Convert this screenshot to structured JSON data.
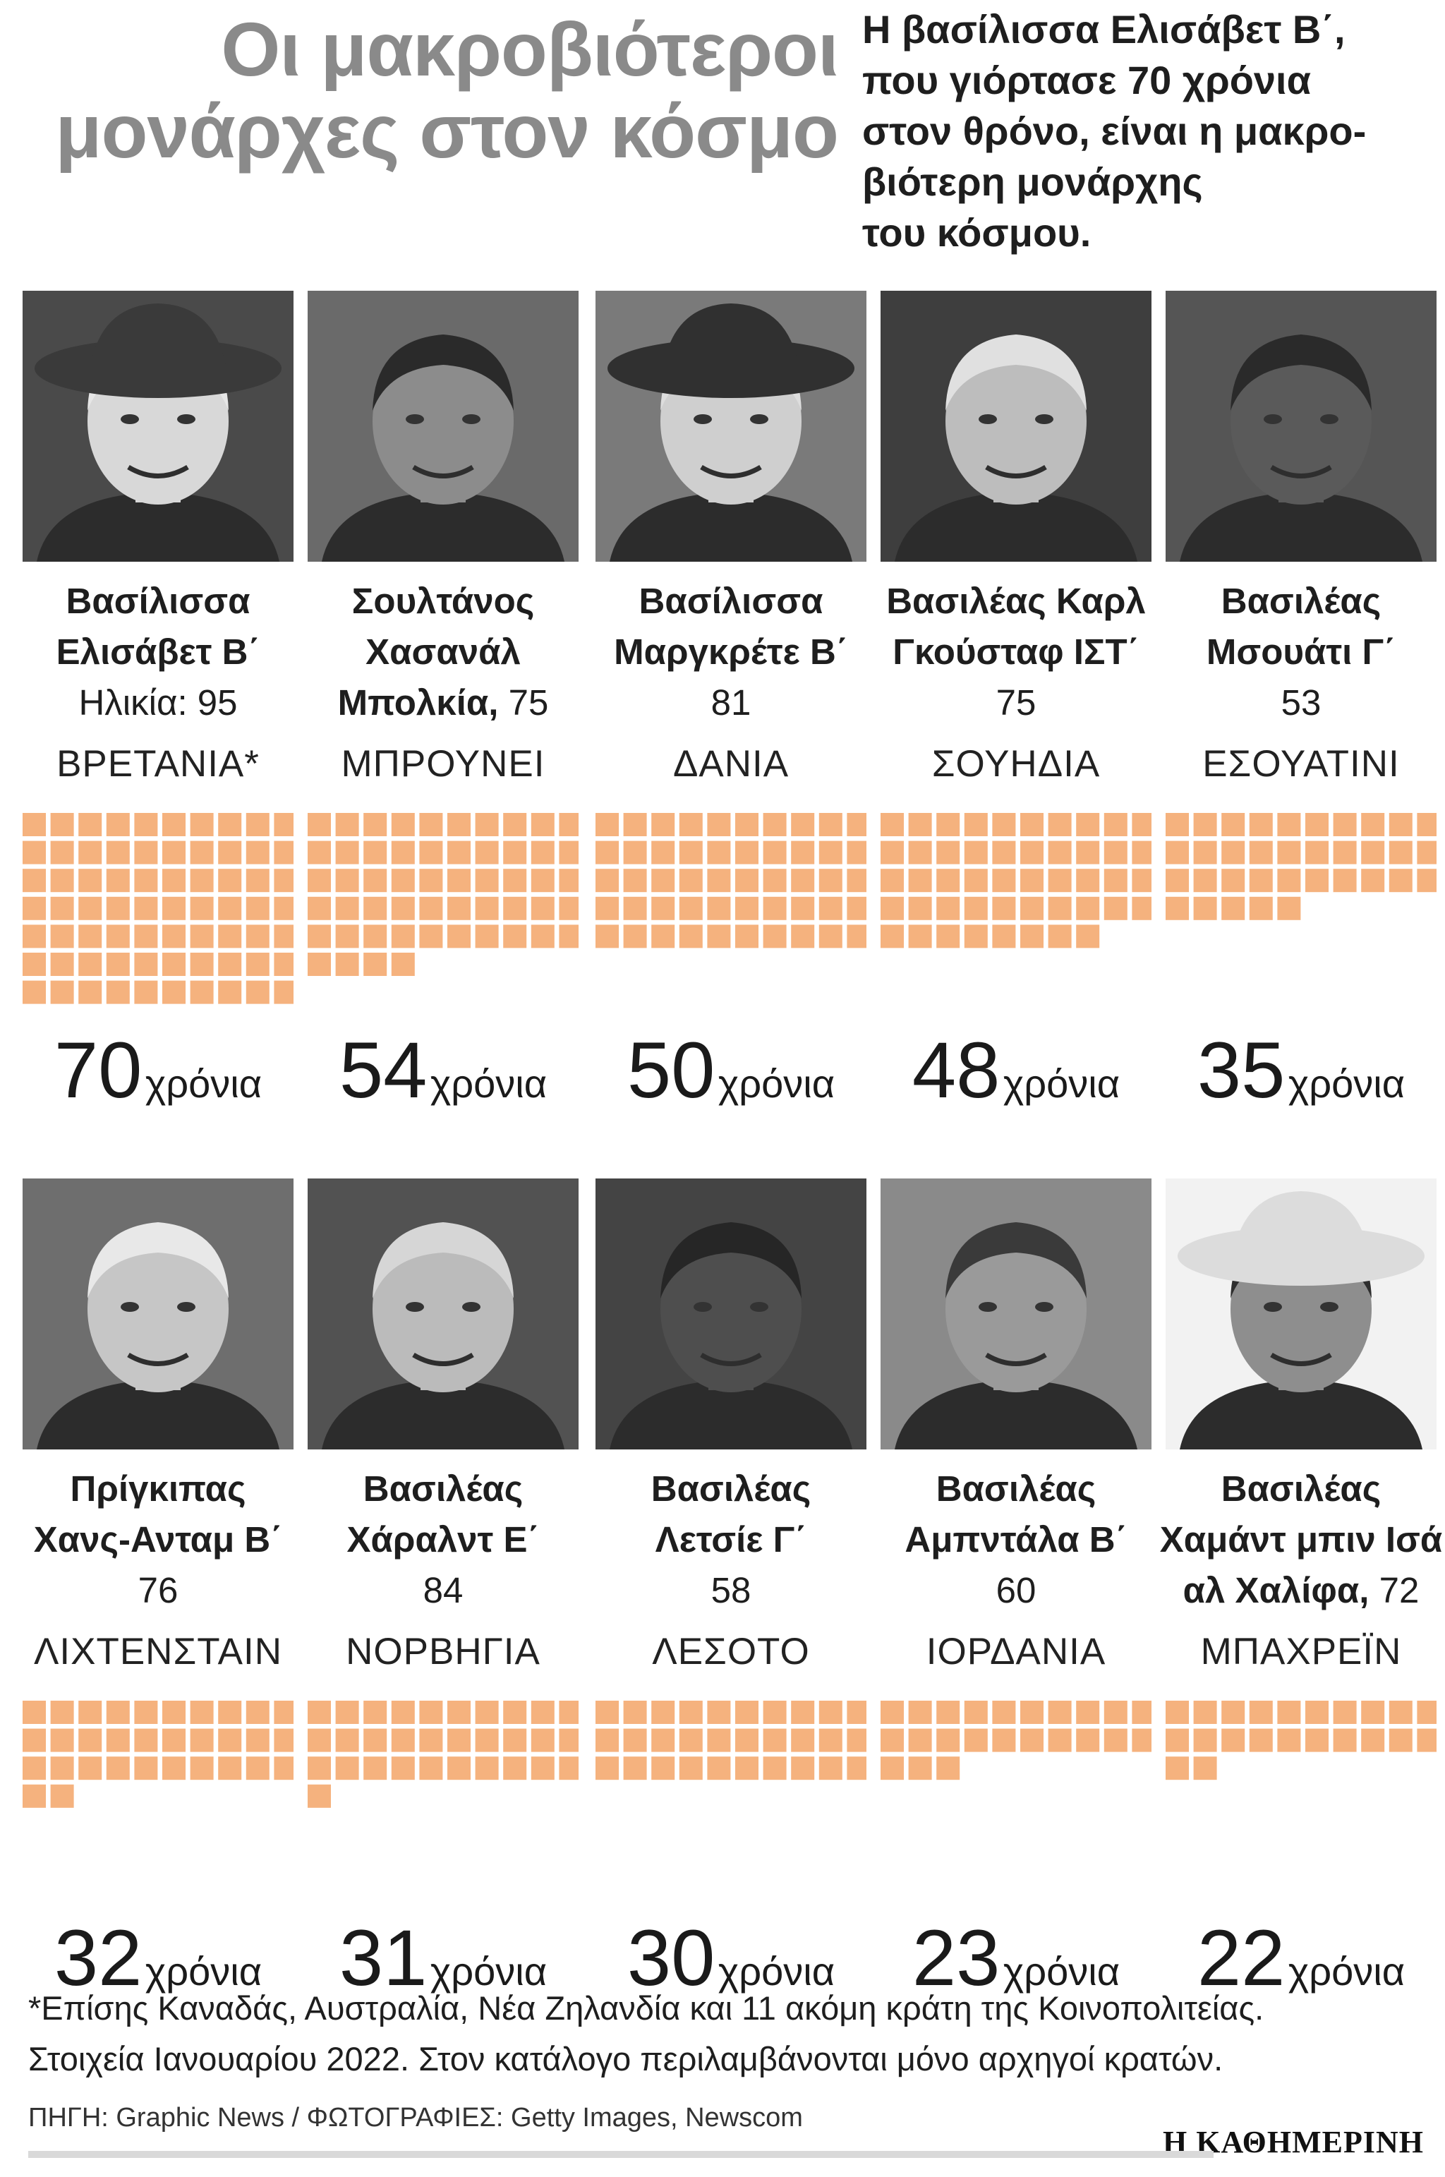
{
  "header": {
    "title_line1": "Οι μακροβιότεροι",
    "title_line2": "μονάρχες στον κόσμο",
    "subtitle_lines": [
      "Η βασίλισσα Ελισάβετ Β΄,",
      "που γιόρτασε 70 χρόνια",
      "στον θρόνο, είναι η μακρο-",
      "βιότερη μονάρχης",
      "του κόσμου."
    ]
  },
  "unit_label": "χρόνια",
  "chart_data": {
    "type": "waffle",
    "unit": "χρόνια",
    "cells_per_row": 10,
    "color": "#f5b27e",
    "items": [
      {
        "title": "Βασίλισσα",
        "name_line": "Ελισάβετ Β΄",
        "age_prefix": "Ηλικία: ",
        "age": "95",
        "country": "ΒΡΕΤΑΝΙΑ*",
        "years": 70
      },
      {
        "title": "Σουλτάνος",
        "name_line": "Χασανάλ",
        "name_inline": "Μπολκία,",
        "age": "75",
        "country": "ΜΠΡΟΥΝΕΙ",
        "years": 54
      },
      {
        "title": "Βασίλισσα",
        "name_line": "Μαργκρέτε Β΄",
        "age": "81",
        "country": "ΔΑΝΙΑ",
        "years": 50
      },
      {
        "title": "Βασιλέας Καρλ",
        "name_line": "Γκούσταφ ΙΣΤ΄",
        "age": "75",
        "country": "ΣΟΥΗΔΙΑ",
        "years": 48
      },
      {
        "title": "Βασιλέας",
        "name_line": "Μσουάτι Γ΄",
        "age": "53",
        "country": "ΕΣΟΥΑΤΙΝΙ",
        "years": 35
      },
      {
        "title": "Πρίγκιπας",
        "name_line": "Χανς-Ανταμ Β΄",
        "age": "76",
        "country": "ΛΙΧΤΕΝΣΤΑΙΝ",
        "years": 32
      },
      {
        "title": "Βασιλέας",
        "name_line": "Χάραλντ Ε΄",
        "age": "84",
        "country": "ΝΟΡΒΗΓΙΑ",
        "years": 31
      },
      {
        "title": "Βασιλέας",
        "name_line": "Λετσίε Γ΄",
        "age": "58",
        "country": "ΛΕΣΟΤΟ",
        "years": 30
      },
      {
        "title": "Βασιλέας",
        "name_line": "Αμπντάλα Β΄",
        "age": "60",
        "country": "ΙΟΡΔΑΝΙΑ",
        "years": 23
      },
      {
        "title": "Βασιλέας",
        "name_line": "Χαμάντ μπιν Ισά",
        "name_inline": "αλ Χαλίφα,",
        "age": "72",
        "country": "ΜΠΑΧΡΕΪΝ",
        "years": 22
      }
    ]
  },
  "photos": [
    {
      "bg": "#4a4a4a",
      "face": "#d8d8d8",
      "hair": "#e6e6e6",
      "hat": "#3a3a3a"
    },
    {
      "bg": "#6a6a6a",
      "face": "#8c8c8c",
      "hair": "#2a2a2a",
      "hat": ""
    },
    {
      "bg": "#7a7a7a",
      "face": "#cfcfcf",
      "hair": "#dddddd",
      "hat": "#303030"
    },
    {
      "bg": "#3e3e3e",
      "face": "#bdbdbd",
      "hair": "#e0e0e0",
      "hat": ""
    },
    {
      "bg": "#555555",
      "face": "#5a5a5a",
      "hair": "#2a2a2a",
      "hat": ""
    },
    {
      "bg": "#6e6e6e",
      "face": "#c6c6c6",
      "hair": "#e8e8e8",
      "hat": ""
    },
    {
      "bg": "#525252",
      "face": "#bbbbbb",
      "hair": "#d6d6d6",
      "hat": ""
    },
    {
      "bg": "#444444",
      "face": "#4e4e4e",
      "hair": "#262626",
      "hat": ""
    },
    {
      "bg": "#8a8a8a",
      "face": "#9a9a9a",
      "hair": "#3a3a3a",
      "hat": ""
    },
    {
      "bg": "#f2f2f2",
      "face": "#8e8e8e",
      "hair": "#2e2e2e",
      "hat": "#dcdcdc"
    }
  ],
  "footnote": {
    "line1": "*Επίσης Καναδάς, Αυστραλία, Νέα Ζηλανδία και 11 ακόμη κράτη της Κοινοπολιτείας.",
    "line2": "Στοιχεία Ιανουαρίου 2022. Στον κατάλογο περιλαμβάνονται μόνο αρχηγοί κρατών."
  },
  "source": "ΠΗΓΗ: Graphic News / ΦΩΤΟΓΡΑΦΙΕΣ: Getty Images, Newscom",
  "logo": "Η ΚΑΘΗΜΕΡΙΝΗ"
}
